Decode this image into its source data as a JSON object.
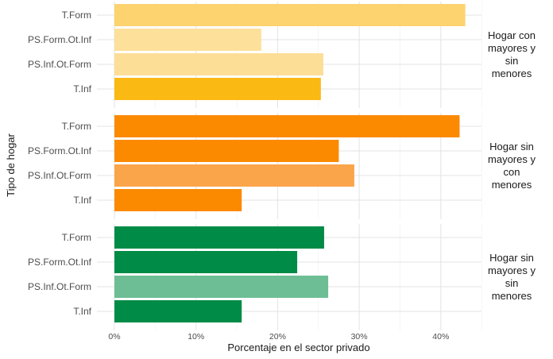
{
  "chart_data": {
    "type": "bar",
    "orientation": "horizontal",
    "xlabel": "Porcentaje en el sector privado",
    "ylabel": "Tipo de hogar",
    "xlim": [
      0,
      45
    ],
    "x_ticks": [
      "0%",
      "10%",
      "20%",
      "30%",
      "40%"
    ],
    "categories": [
      "T.Form",
      "PS.Form.Ot.Inf",
      "PS.Inf.Ot.Form",
      "T.Inf"
    ],
    "grid": true,
    "panels": [
      {
        "label_lines": [
          "Hogar con",
          "mayores y",
          "sin",
          "menores"
        ],
        "values": [
          43,
          18,
          25.6,
          25.3
        ],
        "colors": [
          "#fdd36f",
          "#fde09a",
          "#fdde96",
          "#fbb914"
        ]
      },
      {
        "label_lines": [
          "Hogar sin",
          "mayores y",
          "con",
          "menores"
        ],
        "values": [
          42.3,
          27.5,
          29.4,
          15.6
        ],
        "colors": [
          "#fb8a00",
          "#fb8a00",
          "#fba54b",
          "#fb8a00"
        ]
      },
      {
        "label_lines": [
          "Hogar sin",
          "mayores y",
          "sin",
          "menores"
        ],
        "values": [
          25.7,
          22.4,
          26.2,
          15.6
        ],
        "colors": [
          "#008b46",
          "#008b46",
          "#6dbe94",
          "#008b46"
        ]
      }
    ]
  }
}
